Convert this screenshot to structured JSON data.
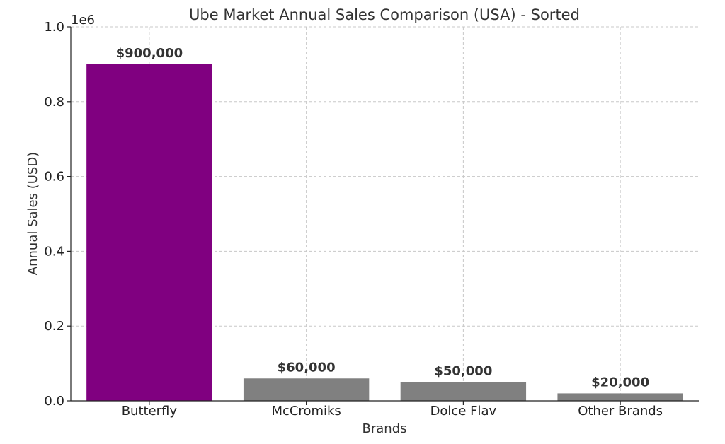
{
  "chart_data": {
    "type": "bar",
    "title": "Ube Market Annual Sales Comparison (USA) - Sorted",
    "xlabel": "Brands",
    "ylabel": "Annual Sales (USD)",
    "y_offset_label": "1e6",
    "categories": [
      "Butterfly",
      "McCromiks",
      "Dolce Flav",
      "Other Brands"
    ],
    "values": [
      900000,
      60000,
      50000,
      20000
    ],
    "value_labels": [
      "$900,000",
      "$60,000",
      "$50,000",
      "$20,000"
    ],
    "bar_colors": [
      "#800080",
      "#808080",
      "#808080",
      "#808080"
    ],
    "ylim": [
      0,
      1000000
    ],
    "yticks": [
      0,
      200000,
      400000,
      600000,
      800000,
      1000000
    ],
    "ytick_labels": [
      "0.0",
      "0.2",
      "0.4",
      "0.6",
      "0.8",
      "1.0"
    ],
    "grid": true
  }
}
